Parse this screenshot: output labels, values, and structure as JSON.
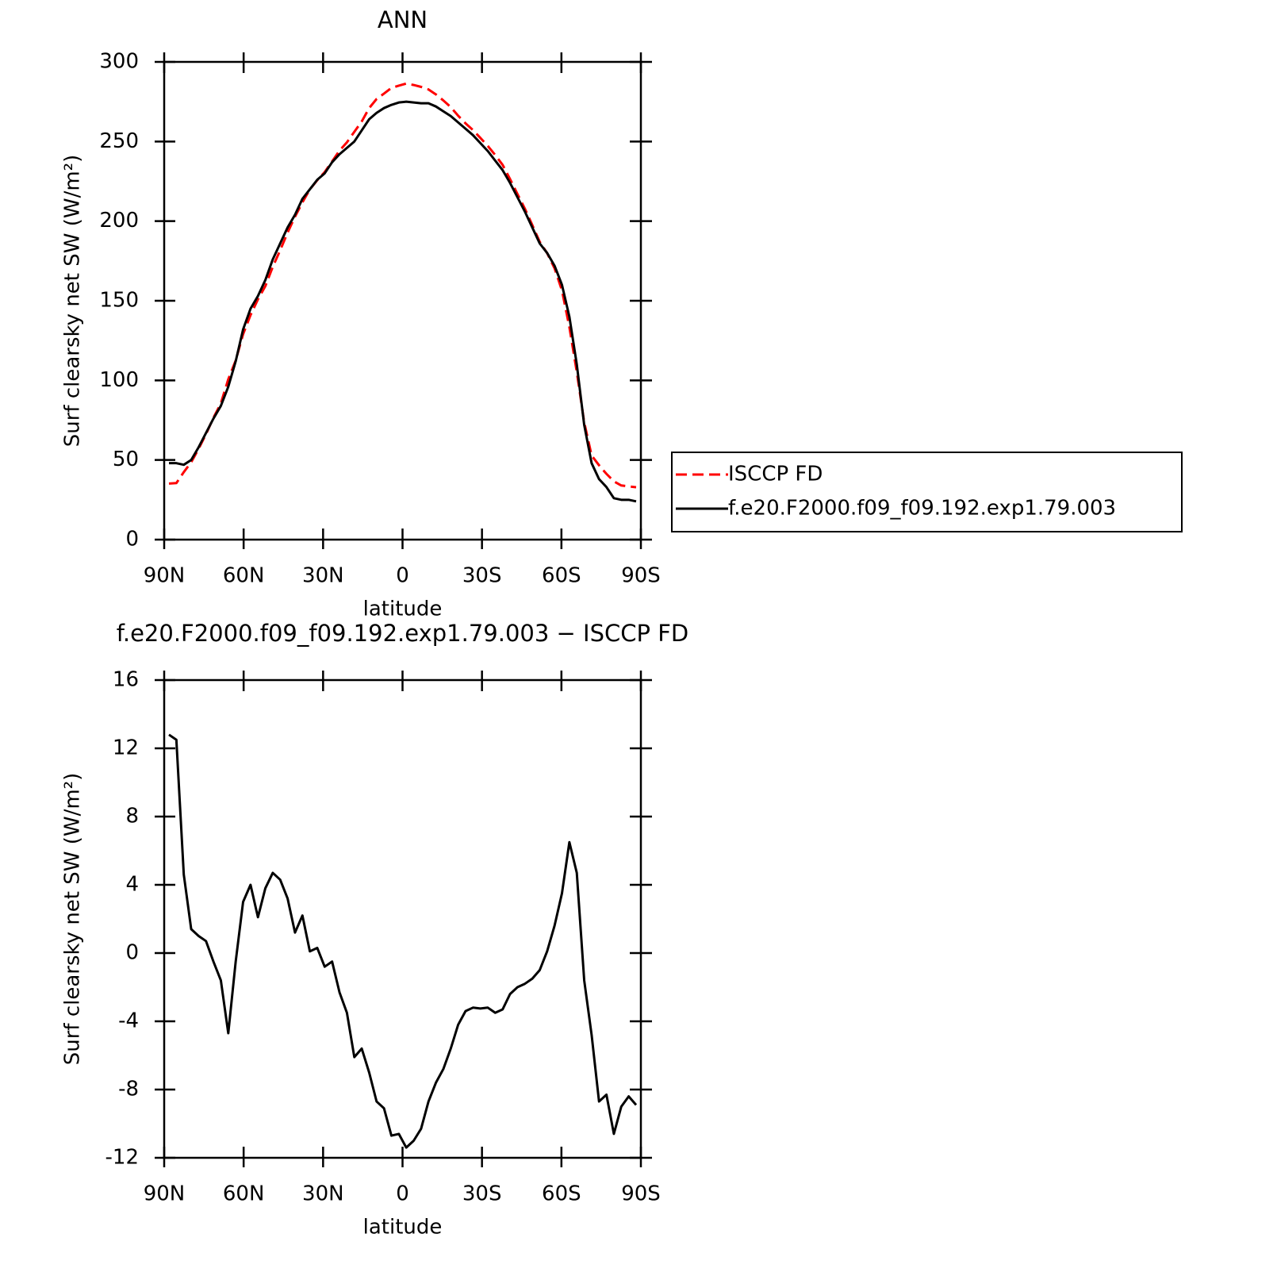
{
  "chart_data": [
    {
      "type": "line",
      "title": "ANN",
      "xlabel": "latitude",
      "ylabel": "Surf clearsky net SW (W/m²)",
      "x": [
        88.2,
        85.4,
        82.6,
        79.8,
        77.0,
        74.2,
        71.4,
        68.6,
        65.8,
        63.0,
        60.2,
        57.4,
        54.6,
        51.8,
        49.0,
        46.2,
        43.4,
        40.6,
        37.8,
        35.0,
        32.2,
        29.4,
        26.6,
        23.8,
        21.0,
        18.2,
        15.4,
        12.6,
        9.8,
        7.0,
        4.2,
        1.4,
        -1.4,
        -4.2,
        -7.0,
        -9.8,
        -12.6,
        -15.4,
        -18.2,
        -21.0,
        -23.8,
        -26.6,
        -29.4,
        -32.2,
        -35.0,
        -37.8,
        -40.6,
        -43.4,
        -46.2,
        -49.0,
        -51.8,
        -54.6,
        -57.4,
        -60.2,
        -63.0,
        -65.8,
        -68.6,
        -71.4,
        -74.2,
        -77.0,
        -79.8,
        -82.6,
        -85.4,
        -88.2
      ],
      "xlim": [
        90,
        -90
      ],
      "xticks": [
        {
          "value": 90,
          "label": "90N"
        },
        {
          "value": 60,
          "label": "60N"
        },
        {
          "value": 30,
          "label": "30N"
        },
        0,
        {
          "value": -30,
          "label": "30S"
        },
        {
          "value": -60,
          "label": "60S"
        },
        {
          "value": -90,
          "label": "90S"
        }
      ],
      "ylim": [
        0,
        300
      ],
      "yticks": [
        0,
        50,
        100,
        150,
        200,
        250,
        300
      ],
      "legend": "right",
      "series": [
        {
          "name": "ISCCP FD",
          "color": "#ff0000",
          "dashed": true,
          "values": [
            35.2,
            35.5,
            42.4,
            48.6,
            57,
            66.3,
            76.5,
            85.6,
            100.7,
            112.5,
            129,
            141,
            150.9,
            159.2,
            171.3,
            181.7,
            192.8,
            202.8,
            211.8,
            219.9,
            225.7,
            230.8,
            237.5,
            244.3,
            249.5,
            256.1,
            262.6,
            271,
            276.7,
            280.1,
            283.7,
            285.1,
            286.4,
            285.5,
            284.3,
            282.7,
            279.6,
            275.8,
            271.6,
            266.2,
            261.4,
            257.2,
            252.25,
            247.2,
            241.5,
            235.3,
            226.4,
            217,
            207.8,
            197.5,
            187,
            179.9,
            170.4,
            156.5,
            133.5,
            105.3,
            73.6,
            52.8,
            46.7,
            41.3,
            36.6,
            34,
            33.4,
            32.9
          ]
        },
        {
          "name": "f.e20.F2000.f09_f09.192.exp1.79.003",
          "color": "#000000",
          "dashed": false,
          "values": [
            48,
            48,
            47,
            50,
            58,
            67,
            76,
            84,
            96,
            112,
            132,
            145,
            153,
            163,
            176,
            186,
            196,
            204,
            214,
            220,
            226,
            230,
            237,
            242,
            246,
            250,
            257,
            264,
            268,
            271,
            273,
            274.5,
            275,
            274.5,
            274,
            274,
            272,
            269,
            266,
            262,
            258,
            254,
            249,
            244,
            238,
            232,
            224,
            215,
            206,
            196,
            186,
            180,
            172,
            160,
            140,
            110,
            72,
            48,
            38,
            33,
            26,
            25,
            25,
            24
          ]
        }
      ]
    },
    {
      "type": "line",
      "title": "f.e20.F2000.f09_f09.192.exp1.79.003 − ISCCP FD",
      "xlabel": "latitude",
      "ylabel": "Surf clearsky net SW (W/m²)",
      "x": [
        88.2,
        85.4,
        82.6,
        79.8,
        77.0,
        74.2,
        71.4,
        68.6,
        65.8,
        63.0,
        60.2,
        57.4,
        54.6,
        51.8,
        49.0,
        46.2,
        43.4,
        40.6,
        37.8,
        35.0,
        32.2,
        29.4,
        26.6,
        23.8,
        21.0,
        18.2,
        15.4,
        12.6,
        9.8,
        7.0,
        4.2,
        1.4,
        -1.4,
        -4.2,
        -7.0,
        -9.8,
        -12.6,
        -15.4,
        -18.2,
        -21.0,
        -23.8,
        -26.6,
        -29.4,
        -32.2,
        -35.0,
        -37.8,
        -40.6,
        -43.4,
        -46.2,
        -49.0,
        -51.8,
        -54.6,
        -57.4,
        -60.2,
        -63.0,
        -65.8,
        -68.6,
        -71.4,
        -74.2,
        -77.0,
        -79.8,
        -82.6,
        -85.4,
        -88.2
      ],
      "xlim": [
        90,
        -90
      ],
      "xticks": [
        {
          "value": 90,
          "label": "90N"
        },
        {
          "value": 60,
          "label": "60N"
        },
        {
          "value": 30,
          "label": "30N"
        },
        0,
        {
          "value": -30,
          "label": "30S"
        },
        {
          "value": -60,
          "label": "60S"
        },
        {
          "value": -90,
          "label": "90S"
        }
      ],
      "ylim": [
        -12,
        16
      ],
      "yticks": [
        -12,
        -8,
        -4,
        0,
        4,
        8,
        12,
        16
      ],
      "series": [
        {
          "color": "#000000",
          "dashed": false,
          "values": [
            12.8,
            12.5,
            4.6,
            1.4,
            1.0,
            0.7,
            -0.5,
            -1.6,
            -4.7,
            -0.5,
            3.0,
            4.0,
            2.1,
            3.8,
            4.7,
            4.3,
            3.2,
            1.2,
            2.2,
            0.1,
            0.3,
            -0.8,
            -0.5,
            -2.3,
            -3.5,
            -6.1,
            -5.6,
            -7.0,
            -8.7,
            -9.1,
            -10.7,
            -10.6,
            -11.4,
            -11.0,
            -10.3,
            -8.7,
            -7.6,
            -6.8,
            -5.6,
            -4.2,
            -3.4,
            -3.2,
            -3.25,
            -3.2,
            -3.5,
            -3.3,
            -2.4,
            -2.0,
            -1.8,
            -1.5,
            -1.0,
            0.1,
            1.6,
            3.5,
            6.5,
            4.7,
            -1.6,
            -4.8,
            -8.7,
            -8.3,
            -10.6,
            -9.0,
            -8.4,
            -8.9
          ]
        }
      ]
    }
  ]
}
